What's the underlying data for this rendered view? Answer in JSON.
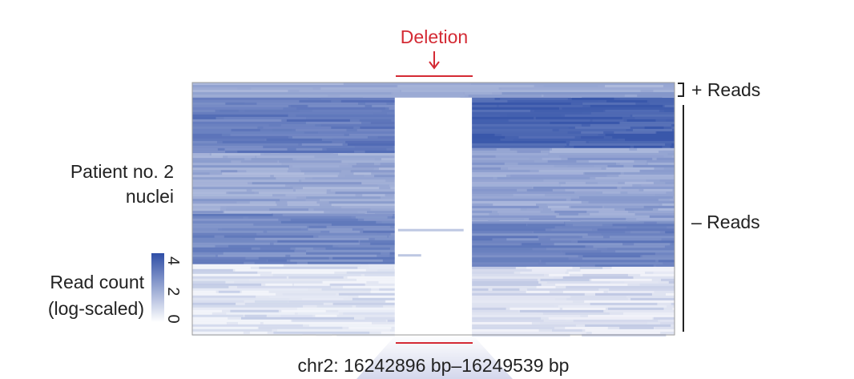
{
  "chart_data": {
    "type": "heatmap",
    "title": "Deletion",
    "xlabel": "chr2: 16242896 bp–16249539 bp",
    "ylabel": "Patient no. 2 nuclei",
    "region": {
      "chrom": "chr2",
      "start_bp": 16242896,
      "end_bp": 16249539
    },
    "deletion": {
      "label": "Deletion"
    },
    "colorbar": {
      "label": "Read count (log-scaled)",
      "range": [
        0,
        4.5
      ],
      "ticks": [
        0,
        2,
        4
      ],
      "color_low": "#ffffff",
      "color_high": "#2f4ea6"
    },
    "read_groups": [
      {
        "label": "+ Reads"
      },
      {
        "label": "– Reads"
      }
    ],
    "heatmap_blocks": [
      {
        "name": "plus-reads-band",
        "x_from": 0,
        "x_to": 1,
        "y_from": 0,
        "y_to": 0.06,
        "level": 2.2
      },
      {
        "name": "left-dense-top",
        "x_from": 0,
        "x_to": 0.42,
        "y_from": 0.06,
        "y_to": 0.28,
        "level": 3.3
      },
      {
        "name": "left-mixed-mid",
        "x_from": 0,
        "x_to": 0.42,
        "y_from": 0.28,
        "y_to": 0.52,
        "level": 2.2
      },
      {
        "name": "left-dense-mid",
        "x_from": 0,
        "x_to": 0.42,
        "y_from": 0.52,
        "y_to": 0.72,
        "level": 3.0
      },
      {
        "name": "left-sparse-bottom",
        "x_from": 0,
        "x_to": 0.42,
        "y_from": 0.72,
        "y_to": 1,
        "level": 0.6
      },
      {
        "name": "deleted-region",
        "x_from": 0.42,
        "x_to": 0.58,
        "y_from": 0.06,
        "y_to": 1,
        "level": 0
      },
      {
        "name": "right-dense-top",
        "x_from": 0.58,
        "x_to": 1,
        "y_from": 0.06,
        "y_to": 0.26,
        "level": 4.0
      },
      {
        "name": "right-mixed-mid",
        "x_from": 0.58,
        "x_to": 1,
        "y_from": 0.26,
        "y_to": 0.55,
        "level": 2.3
      },
      {
        "name": "right-dense-mid",
        "x_from": 0.58,
        "x_to": 1,
        "y_from": 0.55,
        "y_to": 0.73,
        "level": 3.1
      },
      {
        "name": "right-sparse-bottom",
        "x_from": 0.58,
        "x_to": 1,
        "y_from": 0.73,
        "y_to": 1,
        "level": 0.7
      }
    ]
  }
}
